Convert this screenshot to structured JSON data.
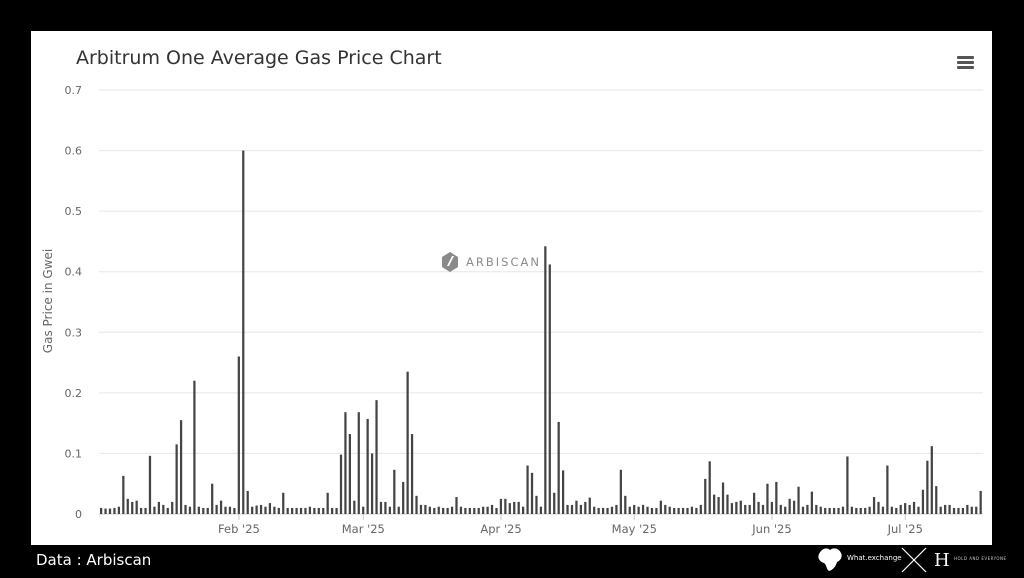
{
  "footer": {
    "source_label": "Data : Arbiscan",
    "brand_left": "What.exchange",
    "brand_right": "HOLD AND EVERYONE"
  },
  "colors": {
    "background": "#000000",
    "panel": "#ffffff",
    "bars": "#444444",
    "grid": "#e6e6e6",
    "text": "#333333"
  },
  "chart_data": {
    "type": "bar",
    "title": "Arbitrum One Average Gas Price Chart",
    "ylabel": "Gas Price in Gwei",
    "xlabel": "",
    "watermark": "ARBISCAN",
    "ylim": [
      0,
      0.7
    ],
    "yticks": [
      0,
      0.1,
      0.2,
      0.3,
      0.4,
      0.5,
      0.6,
      0.7
    ],
    "ytick_labels": [
      "0",
      "0.1",
      "0.2",
      "0.3",
      "0.4",
      "0.5",
      "0.6",
      "0.7"
    ],
    "xtick_labels": [
      "Feb '25",
      "Mar '25",
      "Apr '25",
      "May '25",
      "Jun '25",
      "Jul '25"
    ],
    "xtick_dates": [
      "2025-02-01",
      "2025-03-01",
      "2025-04-01",
      "2025-05-01",
      "2025-06-01",
      "2025-07-01"
    ],
    "start_date": "2025-01-01",
    "grid": true,
    "legend": "none",
    "series": [
      {
        "values": [
          0.01,
          0.009,
          0.009,
          0.01,
          0.012,
          0.063,
          0.025,
          0.02,
          0.022,
          0.01,
          0.01,
          0.096,
          0.012,
          0.02,
          0.015,
          0.01,
          0.02,
          0.115,
          0.155,
          0.015,
          0.012,
          0.22,
          0.012,
          0.01,
          0.01,
          0.05,
          0.015,
          0.022,
          0.012,
          0.012,
          0.01,
          0.26,
          0.6,
          0.038,
          0.012,
          0.014,
          0.015,
          0.012,
          0.018,
          0.012,
          0.01,
          0.035,
          0.01,
          0.01,
          0.01,
          0.01,
          0.01,
          0.012,
          0.01,
          0.01,
          0.01,
          0.035,
          0.01,
          0.01,
          0.098,
          0.168,
          0.132,
          0.022,
          0.168,
          0.012,
          0.157,
          0.1,
          0.188,
          0.02,
          0.02,
          0.012,
          0.073,
          0.012,
          0.053,
          0.235,
          0.132,
          0.03,
          0.015,
          0.015,
          0.012,
          0.01,
          0.012,
          0.01,
          0.01,
          0.012,
          0.028,
          0.012,
          0.01,
          0.01,
          0.01,
          0.01,
          0.012,
          0.012,
          0.015,
          0.01,
          0.025,
          0.025,
          0.018,
          0.02,
          0.02,
          0.012,
          0.08,
          0.068,
          0.03,
          0.012,
          0.442,
          0.412,
          0.035,
          0.152,
          0.072,
          0.015,
          0.015,
          0.022,
          0.015,
          0.02,
          0.027,
          0.012,
          0.01,
          0.01,
          0.01,
          0.012,
          0.015,
          0.073,
          0.03,
          0.012,
          0.015,
          0.012,
          0.015,
          0.012,
          0.01,
          0.01,
          0.022,
          0.015,
          0.012,
          0.01,
          0.01,
          0.01,
          0.01,
          0.012,
          0.01,
          0.015,
          0.058,
          0.087,
          0.032,
          0.028,
          0.052,
          0.032,
          0.018,
          0.02,
          0.022,
          0.015,
          0.015,
          0.035,
          0.02,
          0.015,
          0.05,
          0.02,
          0.053,
          0.015,
          0.012,
          0.025,
          0.022,
          0.045,
          0.012,
          0.015,
          0.037,
          0.015,
          0.012,
          0.01,
          0.01,
          0.01,
          0.01,
          0.012,
          0.095,
          0.012,
          0.01,
          0.01,
          0.01,
          0.012,
          0.028,
          0.02,
          0.012,
          0.08,
          0.012,
          0.01,
          0.015,
          0.018,
          0.015,
          0.02,
          0.012,
          0.04,
          0.088,
          0.112,
          0.046,
          0.012,
          0.015,
          0.015,
          0.01,
          0.01,
          0.01,
          0.015,
          0.012,
          0.012,
          0.038
        ]
      }
    ]
  }
}
